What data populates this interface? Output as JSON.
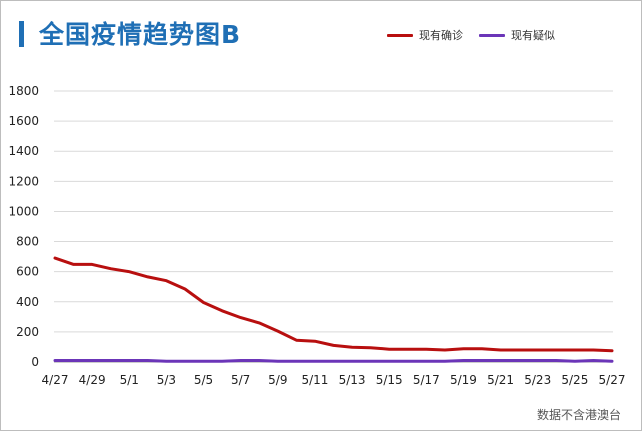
{
  "header": {
    "title": "全国疫情趋势图B"
  },
  "footnote": "数据不含港澳台",
  "colors": {
    "accent": "#1f6fb5"
  },
  "chart_data": {
    "type": "line",
    "title": "全国疫情趋势图B",
    "ylim": [
      0,
      1800
    ],
    "yticks": [
      0,
      200,
      400,
      600,
      800,
      1000,
      1200,
      1400,
      1600,
      1800
    ],
    "x": [
      "4/27",
      "4/28",
      "4/29",
      "4/30",
      "5/1",
      "5/2",
      "5/3",
      "5/4",
      "5/5",
      "5/6",
      "5/7",
      "5/8",
      "5/9",
      "5/10",
      "5/11",
      "5/12",
      "5/13",
      "5/14",
      "5/15",
      "5/16",
      "5/17",
      "5/18",
      "5/19",
      "5/20",
      "5/21",
      "5/22",
      "5/23",
      "5/24",
      "5/25",
      "5/26",
      "5/27"
    ],
    "xtick_labels": [
      "4/27",
      "4/29",
      "5/1",
      "5/3",
      "5/5",
      "5/7",
      "5/9",
      "5/11",
      "5/13",
      "5/15",
      "5/17",
      "5/19",
      "5/21",
      "5/23",
      "5/25",
      "5/27"
    ],
    "grid": true,
    "legend_position": "top-right",
    "series": [
      {
        "name": "现有确诊",
        "color": "#b80f0f",
        "values": [
          690,
          648,
          648,
          620,
          600,
          565,
          540,
          485,
          395,
          340,
          295,
          260,
          205,
          145,
          138,
          110,
          98,
          95,
          85,
          85,
          85,
          80,
          88,
          88,
          80,
          80,
          80,
          80,
          80,
          80,
          75
        ]
      },
      {
        "name": "现有疑似",
        "color": "#6b35b8",
        "values": [
          10,
          10,
          10,
          10,
          10,
          10,
          5,
          5,
          5,
          5,
          10,
          10,
          5,
          5,
          5,
          5,
          5,
          5,
          5,
          5,
          5,
          5,
          10,
          10,
          10,
          10,
          10,
          10,
          5,
          10,
          5
        ]
      }
    ]
  }
}
